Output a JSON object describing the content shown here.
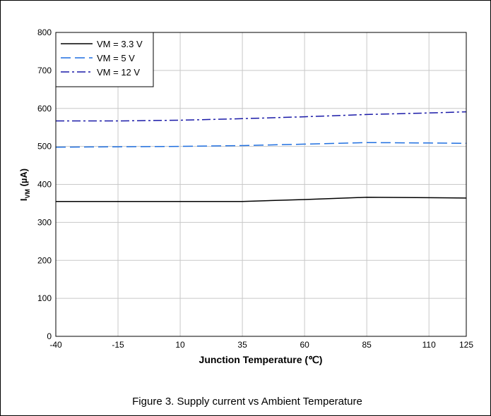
{
  "chart_data": {
    "type": "line",
    "caption": "Figure 3. Supply current vs Ambient Temperature",
    "xlabel": "Junction Temperature (℃)",
    "ylabel": {
      "main": "I",
      "sub": "VM",
      "unit": " (µA)"
    },
    "xlim": [
      -40,
      125
    ],
    "ylim": [
      0,
      800
    ],
    "xticks": [
      -40,
      -15,
      10,
      35,
      60,
      85,
      110,
      125
    ],
    "yticks": [
      0,
      100,
      200,
      300,
      400,
      500,
      600,
      700,
      800
    ],
    "grid": true,
    "legend_position": "top-left",
    "series": [
      {
        "name": "VM = 3.3 V",
        "color": "#000000",
        "style": "solid",
        "x": [
          -40,
          -15,
          10,
          35,
          60,
          85,
          110,
          125
        ],
        "y": [
          355,
          355,
          355,
          355,
          360,
          366,
          365,
          364
        ]
      },
      {
        "name": "VM = 5 V",
        "color": "#1f6fe0",
        "style": "dashed",
        "x": [
          -40,
          -15,
          10,
          35,
          60,
          85,
          110,
          125
        ],
        "y": [
          498,
          499,
          500,
          502,
          506,
          510,
          509,
          508
        ]
      },
      {
        "name": "VM = 12 V",
        "color": "#1a1aa8",
        "style": "dashdot",
        "x": [
          -40,
          -15,
          10,
          35,
          60,
          85,
          110,
          125
        ],
        "y": [
          567,
          567,
          569,
          573,
          578,
          584,
          588,
          591
        ]
      }
    ]
  }
}
